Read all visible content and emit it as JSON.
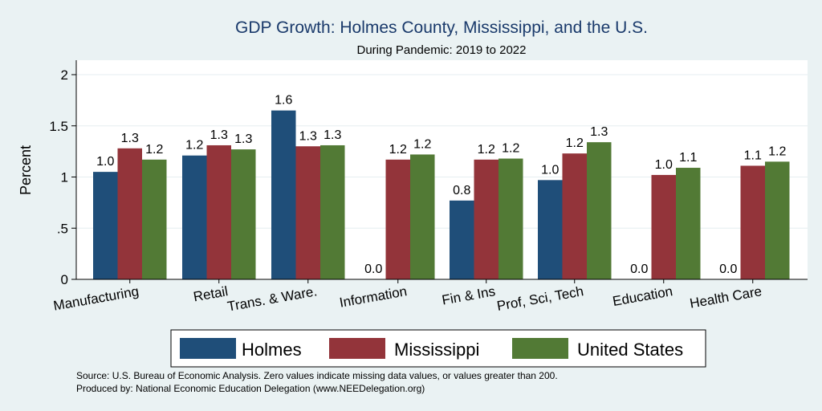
{
  "chart_data": {
    "type": "bar",
    "title": "GDP Growth: Holmes County, Mississippi, and the U.S.",
    "subtitle": "During Pandemic: 2019 to 2022",
    "ylabel": "Percent",
    "xlabel": "",
    "ylim": [
      0,
      2.1
    ],
    "yticks": [
      0,
      0.5,
      1,
      1.5,
      2
    ],
    "ytick_labels": [
      "0",
      ".5",
      "1",
      "1.5",
      "2"
    ],
    "grid": true,
    "legend_position": "bottom",
    "categories": [
      "Manufacturing",
      "Retail",
      "Trans. & Ware.",
      "Information",
      "Fin & Ins",
      "Prof, Sci, Tech",
      "Education",
      "Health Care"
    ],
    "series": [
      {
        "name": "Holmes",
        "color": "#1f4e79",
        "values": [
          1.05,
          1.21,
          1.65,
          0,
          0.77,
          0.97,
          0,
          0
        ],
        "labels": [
          "1.0",
          "1.2",
          "1.6",
          "0.0",
          "0.8",
          "1.0",
          "0.0",
          "0.0"
        ]
      },
      {
        "name": "Mississippi",
        "color": "#93343a",
        "values": [
          1.28,
          1.31,
          1.3,
          1.17,
          1.17,
          1.23,
          1.02,
          1.11
        ],
        "labels": [
          "1.3",
          "1.3",
          "1.3",
          "1.2",
          "1.2",
          "1.2",
          "1.0",
          "1.1"
        ]
      },
      {
        "name": "United States",
        "color": "#527a35",
        "values": [
          1.17,
          1.27,
          1.31,
          1.22,
          1.18,
          1.34,
          1.09,
          1.15
        ],
        "labels": [
          "1.2",
          "1.3",
          "1.3",
          "1.2",
          "1.2",
          "1.3",
          "1.1",
          "1.2"
        ]
      }
    ],
    "notes": [
      "Source: U.S. Bureau of Economic Analysis. Zero values indicate missing data values, or values greater than 200.",
      "Produced by: National Economic Education Delegation (www.NEEDelegation.org)"
    ]
  }
}
